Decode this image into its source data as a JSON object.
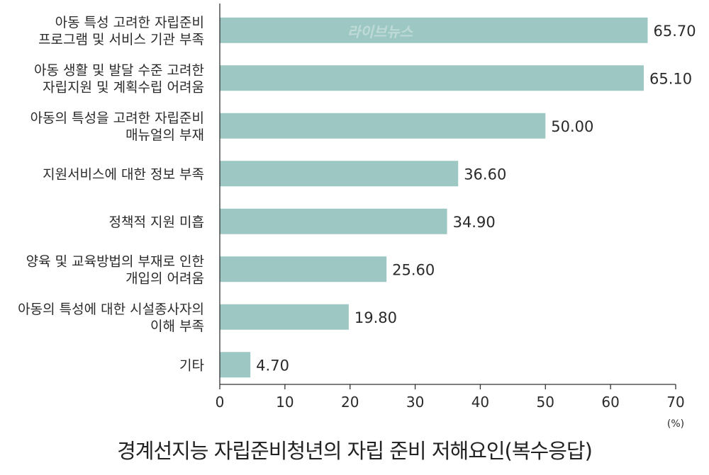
{
  "chart_data": {
    "type": "bar",
    "orientation": "horizontal",
    "title": "경계선지능 자립준비청년의 자립 준비 저해요인(복수응답)",
    "unit": "(%)",
    "categories": [
      [
        "아동 특성 고려한 자립준비",
        "프로그램 및 서비스 기관 부족"
      ],
      [
        "아동 생활 및 발달 수준 고려한",
        "자립지원 및 계획수립 어려움"
      ],
      [
        "아동의 특성을 고려한 자립준비",
        "매뉴얼의 부재"
      ],
      [
        "지원서비스에 대한 정보 부족"
      ],
      [
        "정책적 지원 미흡"
      ],
      [
        "양육 및 교육방법의 부재로 인한",
        "개입의 어려움"
      ],
      [
        "아동의 특성에 대한 시설종사자의",
        "이해 부족"
      ],
      [
        "기타"
      ]
    ],
    "values": [
      65.7,
      65.1,
      50.0,
      36.6,
      34.9,
      25.6,
      19.8,
      4.7
    ],
    "value_labels": [
      "65.70",
      "65.10",
      "50.00",
      "36.60",
      "34.90",
      "25.60",
      "19.80",
      "4.70"
    ],
    "xlim": [
      0,
      70
    ],
    "xticks": [
      "0",
      "10",
      "20",
      "30",
      "40",
      "50",
      "60",
      "70"
    ],
    "grid": false,
    "bar_color": "#9cc7c2",
    "watermark": "라이브뉴스"
  }
}
